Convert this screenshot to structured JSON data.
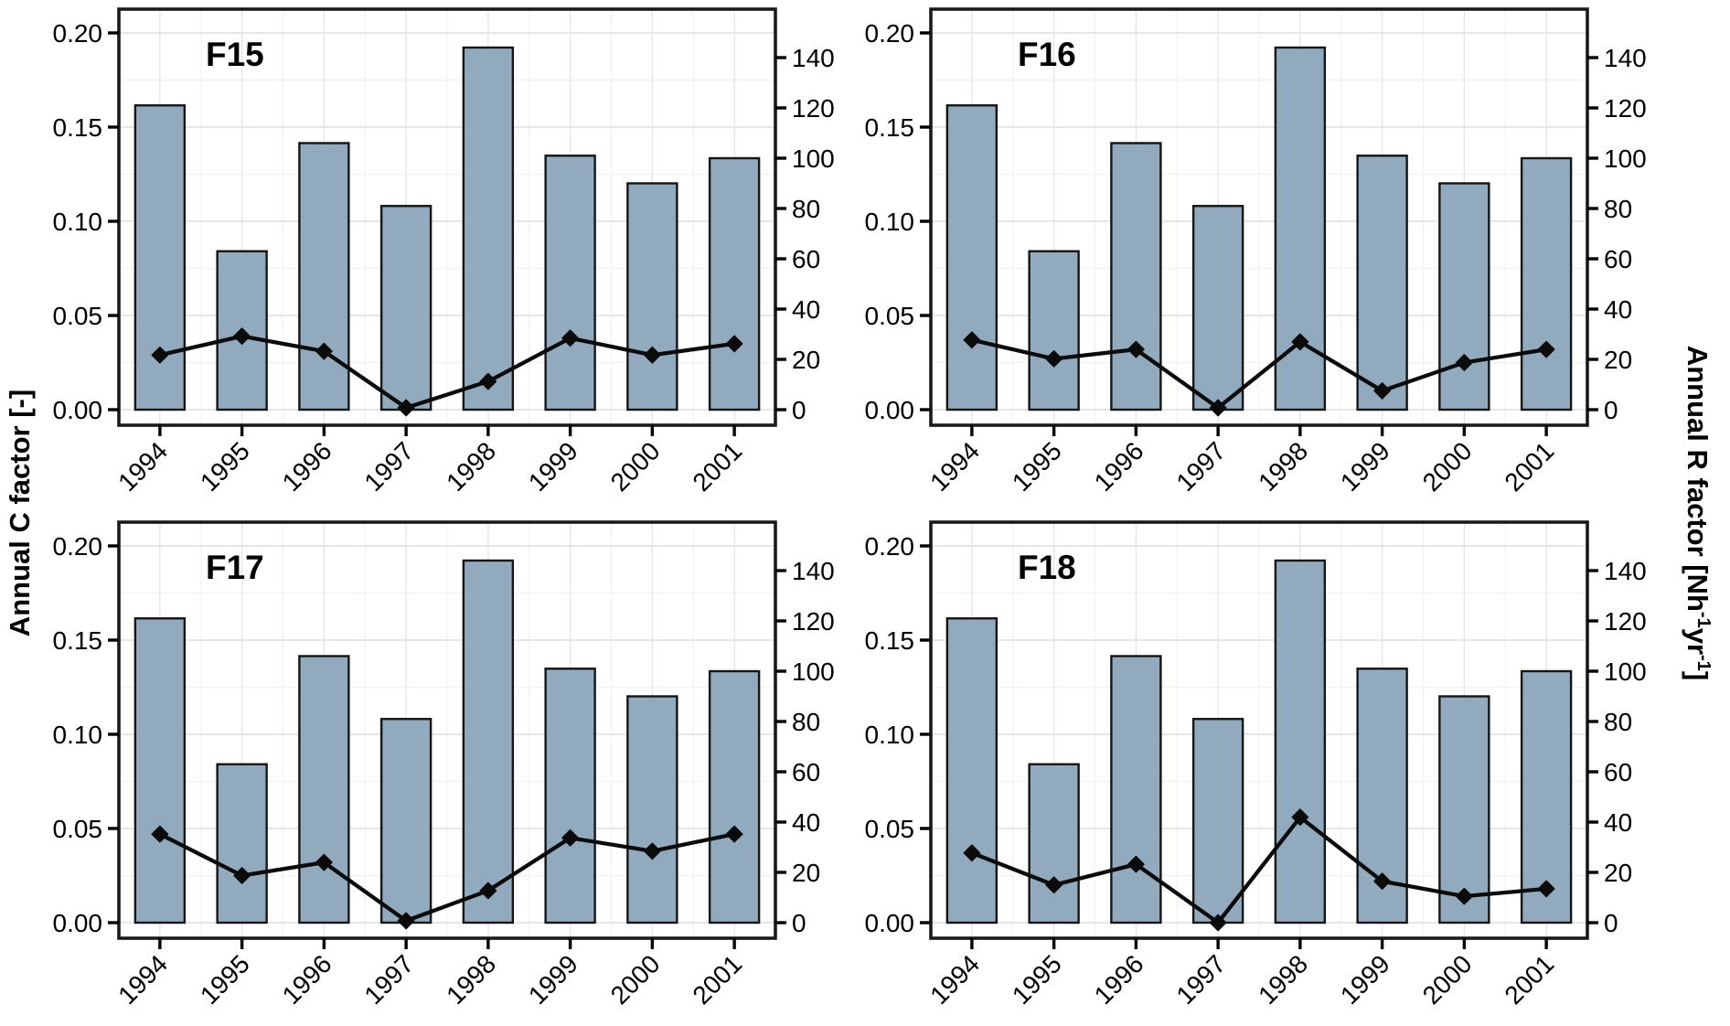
{
  "axes": {
    "left_title": "Annual C factor [-]",
    "right_title": "Annual R factor [Nh⁻¹yr⁻¹]",
    "right_title_segments": [
      {
        "text": "Annual R factor [Nh",
        "sup": false
      },
      {
        "text": "-1",
        "sup": true
      },
      {
        "text": "yr",
        "sup": false
      },
      {
        "text": "-1",
        "sup": true
      },
      {
        "text": "]",
        "sup": false
      }
    ]
  },
  "colors": {
    "bar_fill": "#8CA7BB",
    "bar_border": "#151515",
    "line": "#0B0B0B",
    "marker": "#0B0B0B",
    "grid_major": "#E3E3E3",
    "grid_minor": "#F2F2F2",
    "panel_border": "#1A1A1A",
    "background": "#FFFFFF"
  },
  "chart_data": [
    {
      "type": "bar+line",
      "title": "F15",
      "categories": [
        "1994",
        "1995",
        "1996",
        "1997",
        "1998",
        "1999",
        "2000",
        "2001"
      ],
      "series": [
        {
          "name": "Annual R factor",
          "type": "bar",
          "yaxis": "right",
          "values": [
            121,
            63,
            106,
            81,
            144,
            101,
            90,
            100
          ]
        },
        {
          "name": "Annual C factor",
          "type": "line",
          "yaxis": "left",
          "marker": "diamond",
          "values": [
            0.029,
            0.039,
            0.031,
            0.001,
            0.015,
            0.038,
            0.029,
            0.035
          ]
        }
      ],
      "left_axis": {
        "label": "Annual C factor [-]",
        "tick_values": [
          0,
          0.05,
          0.1,
          0.15,
          0.2
        ],
        "tick_labels": [
          "0.00",
          "0.05",
          "0.10",
          "0.15",
          "0.20"
        ],
        "range": [
          -0.008,
          0.213
        ]
      },
      "right_axis": {
        "label": "Annual R factor [Nh⁻¹yr⁻¹]",
        "tick_values": [
          0,
          20,
          40,
          60,
          80,
          100,
          120,
          140
        ],
        "tick_labels": [
          "0",
          "20",
          "40",
          "60",
          "80",
          "100",
          "120",
          "140"
        ],
        "range": [
          -6,
          159
        ]
      },
      "grid": {
        "major": true,
        "minor": true
      },
      "x_tick_angle": 45
    },
    {
      "type": "bar+line",
      "title": "F16",
      "categories": [
        "1994",
        "1995",
        "1996",
        "1997",
        "1998",
        "1999",
        "2000",
        "2001"
      ],
      "series": [
        {
          "name": "Annual R factor",
          "type": "bar",
          "yaxis": "right",
          "values": [
            121,
            63,
            106,
            81,
            144,
            101,
            90,
            100
          ]
        },
        {
          "name": "Annual C factor",
          "type": "line",
          "yaxis": "left",
          "marker": "diamond",
          "values": [
            0.037,
            0.027,
            0.032,
            0.001,
            0.036,
            0.01,
            0.025,
            0.032
          ]
        }
      ],
      "left_axis": {
        "label": "Annual C factor [-]",
        "tick_values": [
          0,
          0.05,
          0.1,
          0.15,
          0.2
        ],
        "tick_labels": [
          "0.00",
          "0.05",
          "0.10",
          "0.15",
          "0.20"
        ],
        "range": [
          -0.008,
          0.213
        ]
      },
      "right_axis": {
        "label": "Annual R factor [Nh⁻¹yr⁻¹]",
        "tick_values": [
          0,
          20,
          40,
          60,
          80,
          100,
          120,
          140
        ],
        "tick_labels": [
          "0",
          "20",
          "40",
          "60",
          "80",
          "100",
          "120",
          "140"
        ],
        "range": [
          -6,
          159
        ]
      },
      "grid": {
        "major": true,
        "minor": true
      },
      "x_tick_angle": 45
    },
    {
      "type": "bar+line",
      "title": "F17",
      "categories": [
        "1994",
        "1995",
        "1996",
        "1997",
        "1998",
        "1999",
        "2000",
        "2001"
      ],
      "series": [
        {
          "name": "Annual R factor",
          "type": "bar",
          "yaxis": "right",
          "values": [
            121,
            63,
            106,
            81,
            144,
            101,
            90,
            100
          ]
        },
        {
          "name": "Annual C factor",
          "type": "line",
          "yaxis": "left",
          "marker": "diamond",
          "values": [
            0.047,
            0.025,
            0.032,
            0.001,
            0.017,
            0.045,
            0.038,
            0.047
          ]
        }
      ],
      "left_axis": {
        "label": "Annual C factor [-]",
        "tick_values": [
          0,
          0.05,
          0.1,
          0.15,
          0.2
        ],
        "tick_labels": [
          "0.00",
          "0.05",
          "0.10",
          "0.15",
          "0.20"
        ],
        "range": [
          -0.008,
          0.213
        ]
      },
      "right_axis": {
        "label": "Annual R factor [Nh⁻¹yr⁻¹]",
        "tick_values": [
          0,
          20,
          40,
          60,
          80,
          100,
          120,
          140
        ],
        "tick_labels": [
          "0",
          "20",
          "40",
          "60",
          "80",
          "100",
          "120",
          "140"
        ],
        "range": [
          -6,
          159
        ]
      },
      "grid": {
        "major": true,
        "minor": true
      },
      "x_tick_angle": 45
    },
    {
      "type": "bar+line",
      "title": "F18",
      "categories": [
        "1994",
        "1995",
        "1996",
        "1997",
        "1998",
        "1999",
        "2000",
        "2001"
      ],
      "series": [
        {
          "name": "Annual R factor",
          "type": "bar",
          "yaxis": "right",
          "values": [
            121,
            63,
            106,
            81,
            144,
            101,
            90,
            100
          ]
        },
        {
          "name": "Annual C factor",
          "type": "line",
          "yaxis": "left",
          "marker": "diamond",
          "values": [
            0.037,
            0.02,
            0.031,
            0.0,
            0.056,
            0.022,
            0.014,
            0.018
          ]
        }
      ],
      "left_axis": {
        "label": "Annual C factor [-]",
        "tick_values": [
          0,
          0.05,
          0.1,
          0.15,
          0.2
        ],
        "tick_labels": [
          "0.00",
          "0.05",
          "0.10",
          "0.15",
          "0.20"
        ],
        "range": [
          -0.008,
          0.213
        ]
      },
      "right_axis": {
        "label": "Annual R factor [Nh⁻¹yr⁻¹]",
        "tick_values": [
          0,
          20,
          40,
          60,
          80,
          100,
          120,
          140
        ],
        "tick_labels": [
          "0",
          "20",
          "40",
          "60",
          "80",
          "100",
          "120",
          "140"
        ],
        "range": [
          -6,
          159
        ]
      },
      "grid": {
        "major": true,
        "minor": true
      },
      "x_tick_angle": 45
    }
  ]
}
